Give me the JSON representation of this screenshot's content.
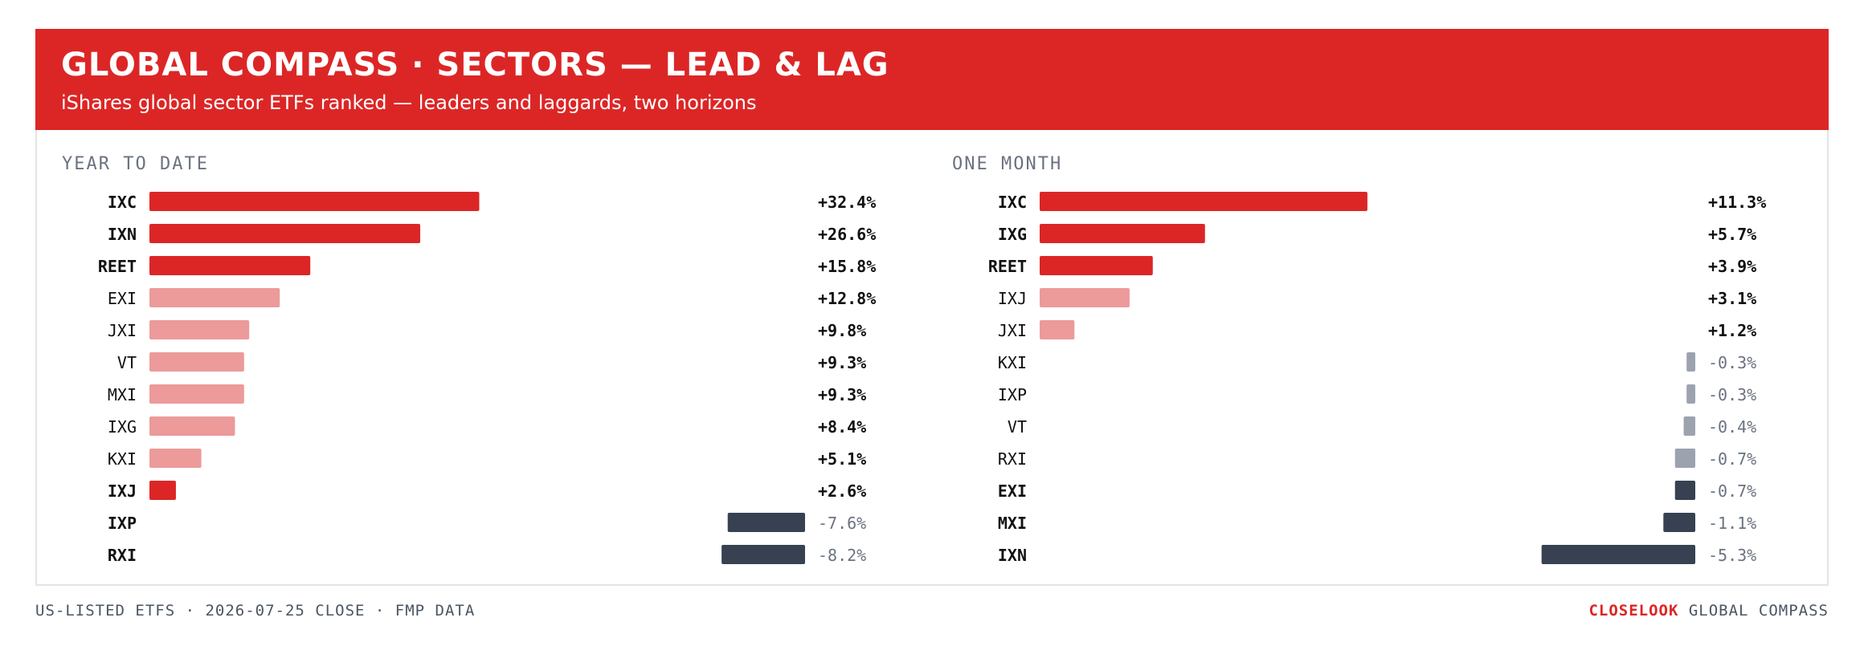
{
  "header": {
    "title": "GLOBAL COMPASS · SECTORS — LEAD & LAG",
    "subtitle": "iShares global sector ETFs ranked — leaders and laggards, two horizons"
  },
  "footer": {
    "source": "US-LISTED ETFS · 2026-07-25 CLOSE · FMP DATA",
    "brand": "CLOSELOOK",
    "brand_suffix": "GLOBAL COMPASS"
  },
  "colors": {
    "accent": "#dc2626",
    "accent_light": "#ec9a9a",
    "negative_dark": "#374151",
    "negative_light": "#9ca3af",
    "text_dark": "#111111",
    "text_muted": "#6b7280"
  },
  "chart_data": [
    {
      "type": "bar",
      "orientation": "horizontal",
      "title": "YEAR TO DATE",
      "unit": "%",
      "categories": [
        "IXC",
        "IXN",
        "REET",
        "EXI",
        "JXI",
        "VT",
        "MXI",
        "IXG",
        "KXI",
        "IXJ",
        "IXP",
        "RXI"
      ],
      "values": [
        32.4,
        26.6,
        15.8,
        12.8,
        9.8,
        9.3,
        9.3,
        8.4,
        5.1,
        2.6,
        -7.6,
        -8.2
      ],
      "labels": [
        "+32.4%",
        "+26.6%",
        "+15.8%",
        "+12.8%",
        "+9.8%",
        "+9.3%",
        "+9.3%",
        "+8.4%",
        "+5.1%",
        "+2.6%",
        "-7.6%",
        "-8.2%"
      ],
      "highlight": [
        "IXC",
        "IXN",
        "REET",
        "IXJ",
        "IXP",
        "RXI"
      ]
    },
    {
      "type": "bar",
      "orientation": "horizontal",
      "title": "ONE MONTH",
      "unit": "%",
      "categories": [
        "IXC",
        "IXG",
        "REET",
        "IXJ",
        "JXI",
        "KXI",
        "IXP",
        "VT",
        "RXI",
        "EXI",
        "MXI",
        "IXN"
      ],
      "values": [
        11.3,
        5.7,
        3.9,
        3.1,
        1.2,
        -0.3,
        -0.3,
        -0.4,
        -0.7,
        -0.7,
        -1.1,
        -5.3
      ],
      "labels": [
        "+11.3%",
        "+5.7%",
        "+3.9%",
        "+3.1%",
        "+1.2%",
        "-0.3%",
        "-0.3%",
        "-0.4%",
        "-0.7%",
        "-0.7%",
        "-1.1%",
        "-5.3%"
      ],
      "highlight": [
        "IXC",
        "IXG",
        "REET",
        "EXI",
        "MXI",
        "IXN"
      ]
    }
  ]
}
